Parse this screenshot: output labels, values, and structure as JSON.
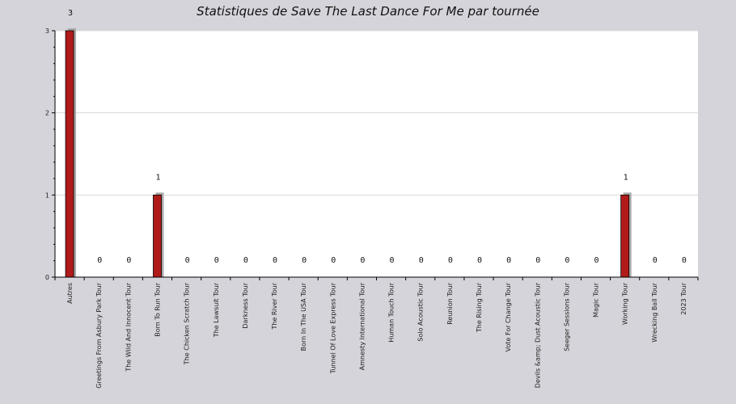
{
  "chart_data": {
    "type": "bar",
    "title": "Statistiques de Save The Last Dance For Me par tournée",
    "xlabel": "",
    "ylabel": "",
    "ylim": [
      0,
      3
    ],
    "yticks": [
      "0",
      "1",
      "2",
      "3"
    ],
    "grid": true,
    "legend": "none",
    "bar_color": "#b01a1a",
    "shadow_color": "#a9a9a9",
    "categories": [
      "Autres",
      "Greetings From Asbury Park Tour",
      "The Wild And Innocent Tour",
      "Born To Run Tour",
      "The Chicken Scratch Tour",
      "The Lawsuit Tour",
      "Darkness Tour",
      "The River Tour",
      "Born In The USA Tour",
      "Tunnel Of Love Express Tour",
      "Amnesty International Tour",
      "Human Touch Tour",
      "Solo Acoustic Tour",
      "Reunion Tour",
      "The Rising Tour",
      "Vote For Change Tour",
      "Devils &amp; Dust Acoustic Tour",
      "Seeger Sessions Tour",
      "Magic Tour",
      "Working Tour",
      "Wrecking Ball Tour",
      "2023 Tour"
    ],
    "values": [
      3,
      0,
      0,
      1,
      0,
      0,
      0,
      0,
      0,
      0,
      0,
      0,
      0,
      0,
      0,
      0,
      0,
      0,
      0,
      1,
      0,
      0
    ],
    "data_labels": [
      "3",
      "0",
      "0",
      "1",
      "0",
      "0",
      "0",
      "0",
      "0",
      "0",
      "0",
      "0",
      "0",
      "0",
      "0",
      "0",
      "0",
      "0",
      "0",
      "1",
      "0",
      "0"
    ]
  }
}
